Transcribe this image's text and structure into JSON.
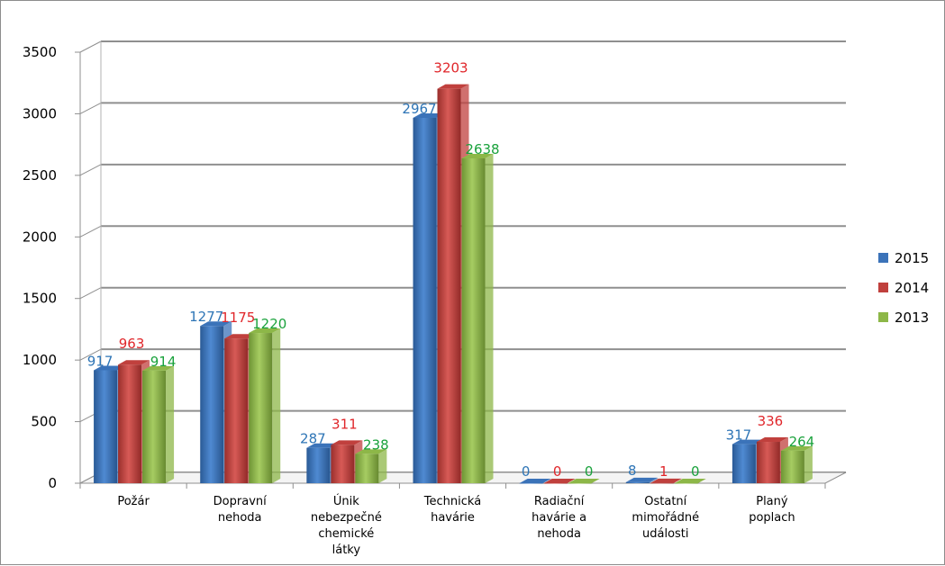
{
  "chart_data": {
    "type": "bar",
    "title": "",
    "xlabel": "",
    "ylabel": "",
    "ylim": [
      0,
      3500
    ],
    "yticks": [
      0,
      500,
      1000,
      1500,
      2000,
      2500,
      3000,
      3500
    ],
    "grid": true,
    "legend_position": "right",
    "categories": [
      [
        "Požár"
      ],
      [
        "Dopravní",
        "nehoda"
      ],
      [
        "Únik",
        "nebezpečné",
        "chemické",
        "látky"
      ],
      [
        "Technická",
        "havárie"
      ],
      [
        "Radiační",
        "havárie a",
        "nehoda"
      ],
      [
        "Ostatní",
        "mimořádné",
        "události"
      ],
      [
        "Planý",
        "poplach"
      ]
    ],
    "series": [
      {
        "name": "2015",
        "color": "#3b73b9",
        "label_color": "#2e75b6",
        "values": [
          917,
          1277,
          287,
          2967,
          0,
          8,
          317
        ]
      },
      {
        "name": "2014",
        "color": "#c0403d",
        "label_color": "#e0262a",
        "values": [
          963,
          1175,
          311,
          3203,
          0,
          1,
          336
        ]
      },
      {
        "name": "2013",
        "color": "#8db748",
        "label_color": "#1aa23c",
        "values": [
          914,
          1220,
          238,
          2638,
          0,
          0,
          264
        ]
      }
    ]
  }
}
